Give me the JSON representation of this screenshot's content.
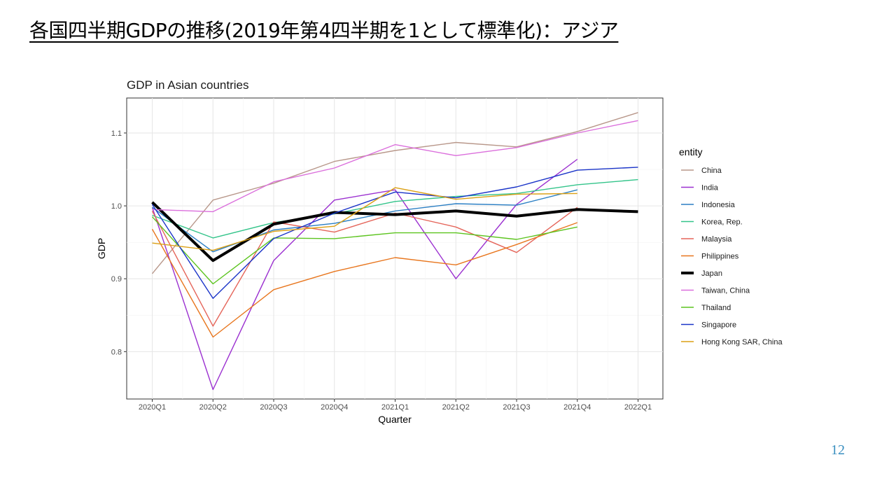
{
  "slide": {
    "title": "各国四半期GDPの推移(2019年第4四半期を1として標準化)：アジア",
    "page_number": "12"
  },
  "chart_data": {
    "type": "line",
    "title": "GDP in Asian countries",
    "xlabel": "Quarter",
    "ylabel": "GDP",
    "categories": [
      "2020Q1",
      "2020Q2",
      "2020Q3",
      "2020Q4",
      "2021Q1",
      "2021Q2",
      "2021Q3",
      "2021Q4",
      "2022Q1"
    ],
    "ylim": [
      0.735,
      1.148
    ],
    "yticks": [
      0.8,
      0.9,
      1.0,
      1.1
    ],
    "ytick_labels": [
      "0.8",
      "0.9",
      "1.0",
      "1.1"
    ],
    "grid": true,
    "legend_title": "entity",
    "legend_position": "right",
    "series": [
      {
        "name": "China",
        "color": "#b8978a",
        "width": 1.4,
        "values": [
          0.907,
          1.008,
          1.031,
          1.061,
          1.076,
          1.087,
          1.081,
          1.102,
          1.128
        ]
      },
      {
        "name": "India",
        "color": "#9b30d0",
        "width": 1.4,
        "values": [
          0.998,
          0.748,
          0.925,
          1.008,
          1.022,
          0.9,
          1.002,
          1.064,
          null
        ]
      },
      {
        "name": "Indonesia",
        "color": "#2b7fc4",
        "width": 1.4,
        "values": [
          0.998,
          0.937,
          0.967,
          0.976,
          0.993,
          1.003,
          1.001,
          1.022,
          null
        ]
      },
      {
        "name": "Korea, Rep.",
        "color": "#33c48a",
        "width": 1.4,
        "values": [
          0.987,
          0.956,
          0.977,
          0.989,
          1.006,
          1.013,
          1.017,
          1.029,
          1.036
        ]
      },
      {
        "name": "Malaysia",
        "color": "#e5655a",
        "width": 1.4,
        "values": [
          0.993,
          0.835,
          0.978,
          0.964,
          0.99,
          0.971,
          0.936,
          0.998,
          null
        ]
      },
      {
        "name": "Philippines",
        "color": "#e8761e",
        "width": 1.4,
        "values": [
          0.968,
          0.82,
          0.885,
          0.91,
          0.929,
          0.919,
          0.947,
          0.977,
          null
        ]
      },
      {
        "name": "Japan",
        "color": "#000000",
        "width": 4,
        "values": [
          1.005,
          0.925,
          0.975,
          0.991,
          0.988,
          0.993,
          0.986,
          0.995,
          0.992
        ]
      },
      {
        "name": "Taiwan, China",
        "color": "#db6fdc",
        "width": 1.4,
        "values": [
          0.995,
          0.992,
          1.033,
          1.052,
          1.084,
          1.069,
          1.08,
          1.1,
          1.117
        ]
      },
      {
        "name": "Thailand",
        "color": "#5cc41f",
        "width": 1.4,
        "values": [
          0.985,
          0.893,
          0.956,
          0.955,
          0.963,
          0.963,
          0.954,
          0.971,
          null
        ]
      },
      {
        "name": "Singapore",
        "color": "#1a34c8",
        "width": 1.4,
        "values": [
          1.002,
          0.873,
          0.955,
          0.99,
          1.019,
          1.011,
          1.026,
          1.049,
          1.053
        ]
      },
      {
        "name": "Hong Kong SAR, China",
        "color": "#dba015",
        "width": 1.4,
        "values": [
          0.949,
          0.939,
          0.965,
          0.972,
          1.025,
          1.009,
          1.016,
          1.017,
          null
        ]
      }
    ]
  }
}
